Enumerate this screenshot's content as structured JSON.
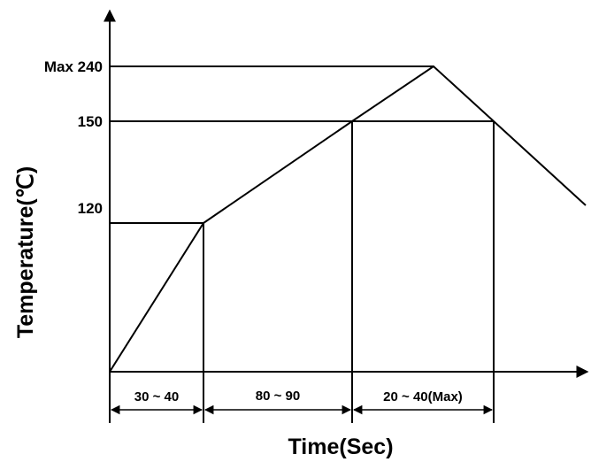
{
  "chart_data": {
    "type": "line",
    "title": "",
    "xlabel": "Time(Sec)",
    "ylabel": "Temperature(℃)",
    "y_ticks": [
      {
        "label": "Max 240",
        "value": 240
      },
      {
        "label": "150",
        "value": 150
      },
      {
        "label": "120",
        "value": 120
      }
    ],
    "time_spans": [
      {
        "label": "30 ~ 40"
      },
      {
        "label": "80 ~ 90"
      },
      {
        "label": "20 ~ 40(Max)"
      }
    ]
  }
}
